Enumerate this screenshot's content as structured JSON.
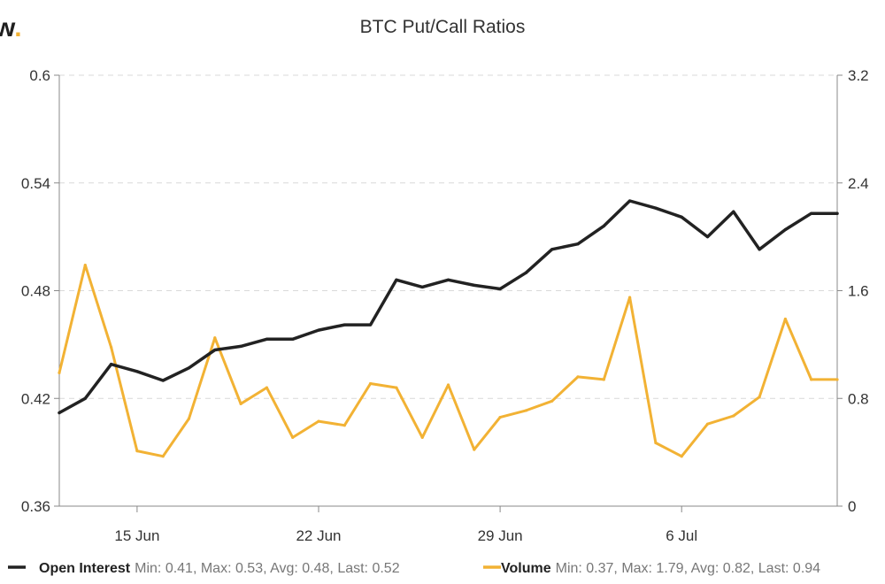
{
  "brand": {
    "logo_text": "w",
    "accent_color": "#F2B234"
  },
  "chart_data": {
    "type": "line",
    "title": "BTC Put/Call Ratios",
    "x": [
      "12 Jun",
      "13 Jun",
      "14 Jun",
      "15 Jun",
      "16 Jun",
      "17 Jun",
      "18 Jun",
      "19 Jun",
      "20 Jun",
      "21 Jun",
      "22 Jun",
      "23 Jun",
      "24 Jun",
      "25 Jun",
      "26 Jun",
      "27 Jun",
      "28 Jun",
      "29 Jun",
      "30 Jun",
      "1 Jul",
      "2 Jul",
      "3 Jul",
      "4 Jul",
      "5 Jul",
      "6 Jul",
      "7 Jul",
      "8 Jul",
      "9 Jul",
      "10 Jul",
      "11 Jul",
      "12 Jul"
    ],
    "x_tick_labels": [
      "15 Jun",
      "22 Jun",
      "29 Jun",
      "6 Jul"
    ],
    "y_left": {
      "ylim": [
        0.36,
        0.6
      ],
      "ticks": [
        "0.36",
        "0.42",
        "0.48",
        "0.54",
        "0.6"
      ]
    },
    "y_right": {
      "ylim": [
        0,
        3.2
      ],
      "ticks": [
        "0",
        "0.8",
        "1.6",
        "2.4",
        "3.2"
      ]
    },
    "grid": "horizontal dashed",
    "legend_position": "bottom",
    "series": [
      {
        "name": "Open Interest",
        "axis": "left",
        "color": "#222222",
        "values": [
          0.412,
          0.42,
          0.439,
          0.435,
          0.43,
          0.437,
          0.447,
          0.449,
          0.453,
          0.453,
          0.458,
          0.461,
          0.461,
          0.486,
          0.482,
          0.486,
          0.483,
          0.481,
          0.49,
          0.503,
          0.506,
          0.516,
          0.53,
          0.526,
          0.521,
          0.51,
          0.524,
          0.503,
          0.514,
          0.523,
          0.523
        ],
        "stats_text": "Min: 0.41, Max: 0.53, Avg: 0.48, Last: 0.52"
      },
      {
        "name": "Volume",
        "axis": "right",
        "color": "#F2B234",
        "values": [
          0.99,
          1.79,
          1.18,
          0.41,
          0.37,
          0.65,
          1.25,
          0.76,
          0.88,
          0.51,
          0.63,
          0.6,
          0.91,
          0.88,
          0.51,
          0.9,
          0.42,
          0.66,
          0.71,
          0.78,
          0.96,
          0.94,
          1.55,
          0.47,
          0.37,
          0.61,
          0.67,
          0.81,
          1.39,
          0.94,
          0.94
        ],
        "stats_text": "Min: 0.37, Max: 1.79, Avg: 0.82, Last: 0.94"
      }
    ]
  }
}
